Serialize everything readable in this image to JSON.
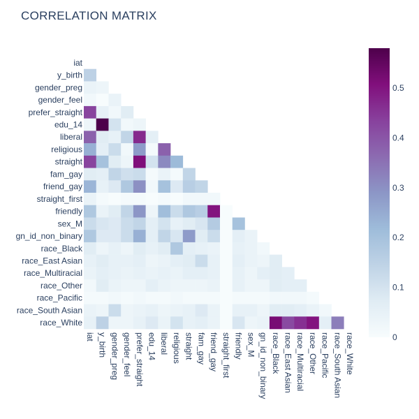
{
  "chart_data": {
    "type": "heatmap",
    "title": "CORRELATION MATRIX",
    "variables": [
      "iat",
      "y_birth",
      "gender_preg",
      "gender_feel",
      "prefer_straight",
      "edu_14",
      "liberal",
      "religious",
      "straight",
      "fam_gay",
      "friend_gay",
      "straight_first",
      "friendly",
      "sex_M",
      "gn_id_non_binary",
      "race_Black",
      "race_East Asian",
      "race_Multiracial",
      "race_Other",
      "race_Pacific",
      "race_South Asian",
      "race_White"
    ],
    "mask": "lower-triangle",
    "colorbar": {
      "min": 0,
      "max": 0.58,
      "ticks": [
        0,
        0.1,
        0.2,
        0.3,
        0.4,
        0.5
      ],
      "tick_labels": [
        "0",
        "0.1",
        "0.2",
        "0.3",
        "0.4",
        "0.5"
      ]
    },
    "colorscale": [
      [
        0,
        "#f7fcfd"
      ],
      [
        0.125,
        "#e0ecf4"
      ],
      [
        0.25,
        "#bfd3e6"
      ],
      [
        0.375,
        "#9ebcda"
      ],
      [
        0.5,
        "#8c96c6"
      ],
      [
        0.625,
        "#8c6bb1"
      ],
      [
        0.75,
        "#88419d"
      ],
      [
        0.875,
        "#810f7c"
      ],
      [
        1,
        "#4d004b"
      ]
    ],
    "values": [
      [],
      [
        0.15
      ],
      [
        0.04,
        0.03
      ],
      [
        0.02,
        0.0,
        0.04
      ],
      [
        0.43,
        0.05,
        0.02,
        0.07
      ],
      [
        0.03,
        0.58,
        0.1,
        0.02,
        0.03
      ],
      [
        0.38,
        0.07,
        0.05,
        0.14,
        0.47,
        0.06
      ],
      [
        0.24,
        0.06,
        0.12,
        0.02,
        0.28,
        0.01,
        0.38
      ],
      [
        0.43,
        0.2,
        0.07,
        0.03,
        0.51,
        0.1,
        0.31,
        0.22
      ],
      [
        0.07,
        0.06,
        0.14,
        0.11,
        0.12,
        0.01,
        0.04,
        0.01,
        0.14
      ],
      [
        0.23,
        0.05,
        0.08,
        0.18,
        0.3,
        0.02,
        0.2,
        0.08,
        0.16,
        0.14
      ],
      [
        0.04,
        0.01,
        0.0,
        0.01,
        0.01,
        0.0,
        0.01,
        0.0,
        0.02,
        0.02,
        0.02
      ],
      [
        0.18,
        0.04,
        0.07,
        0.14,
        0.29,
        0.03,
        0.21,
        0.12,
        0.18,
        0.16,
        0.5,
        0.0
      ],
      [
        0.12,
        0.09,
        0.08,
        0.12,
        0.14,
        0.06,
        0.1,
        0.05,
        0.07,
        0.09,
        0.17,
        0.0,
        0.2
      ],
      [
        0.18,
        0.08,
        0.08,
        0.12,
        0.24,
        0.06,
        0.14,
        0.09,
        0.28,
        0.07,
        0.12,
        0.0,
        0.06,
        0.04
      ],
      [
        0.07,
        0.03,
        0.05,
        0.03,
        0.07,
        0.05,
        0.07,
        0.18,
        0.06,
        0.05,
        0.04,
        0.0,
        0.05,
        0.04,
        0.02
      ],
      [
        0.05,
        0.07,
        0.05,
        0.05,
        0.06,
        0.03,
        0.04,
        0.06,
        0.07,
        0.12,
        0.05,
        0.0,
        0.06,
        0.04,
        0.03,
        0.07
      ],
      [
        0.04,
        0.06,
        0.05,
        0.04,
        0.05,
        0.04,
        0.05,
        0.04,
        0.06,
        0.06,
        0.05,
        0.0,
        0.05,
        0.03,
        0.06,
        0.07,
        0.06
      ],
      [
        0.02,
        0.07,
        0.04,
        0.03,
        0.03,
        0.06,
        0.04,
        0.03,
        0.03,
        0.03,
        0.04,
        0.0,
        0.05,
        0.03,
        0.03,
        0.07,
        0.06,
        0.06
      ],
      [
        0.01,
        0.01,
        0.02,
        0.01,
        0.02,
        0.01,
        0.01,
        0.02,
        0.01,
        0.01,
        0.01,
        0.0,
        0.01,
        0.01,
        0.01,
        0.02,
        0.02,
        0.02,
        0.01
      ],
      [
        0.04,
        0.03,
        0.12,
        0.03,
        0.04,
        0.05,
        0.03,
        0.04,
        0.05,
        0.08,
        0.04,
        0.0,
        0.05,
        0.05,
        0.03,
        0.07,
        0.07,
        0.06,
        0.04,
        0.02
      ],
      [
        0.05,
        0.15,
        0.03,
        0.03,
        0.05,
        0.08,
        0.04,
        0.1,
        0.05,
        0.06,
        0.04,
        0.0,
        0.09,
        0.03,
        0.04,
        0.52,
        0.42,
        0.46,
        0.5,
        0.06,
        0.33
      ]
    ]
  }
}
